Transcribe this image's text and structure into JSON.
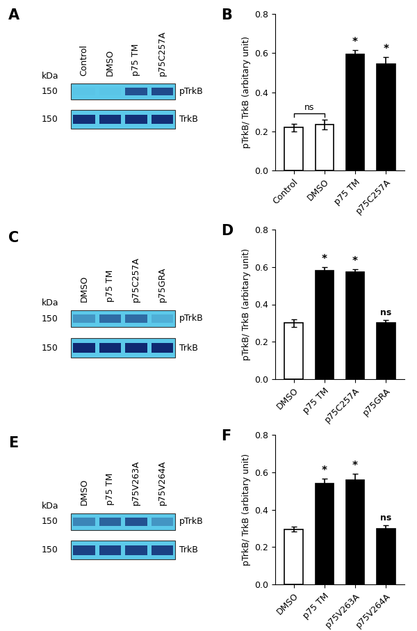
{
  "blots": [
    {
      "label": "A",
      "unit": "kDa",
      "lanes": [
        "Control",
        "DMSO",
        "p75 TM",
        "p75C257A"
      ],
      "rows": [
        {
          "name": "pTrkB",
          "kda": "150",
          "intensity": [
            0.02,
            0.02,
            0.7,
            0.75
          ]
        },
        {
          "name": "TrkB",
          "kda": "150",
          "intensity": [
            0.9,
            0.9,
            0.9,
            0.9
          ]
        }
      ]
    },
    {
      "label": "C",
      "unit": "kDa",
      "lanes": [
        "DMSO",
        "p75 TM",
        "p75C257A",
        "p75GRA"
      ],
      "rows": [
        {
          "name": "pTrkB",
          "kda": "150",
          "intensity": [
            0.3,
            0.55,
            0.55,
            0.15
          ]
        },
        {
          "name": "TrkB",
          "kda": "150",
          "intensity": [
            0.95,
            0.95,
            0.95,
            0.95
          ]
        }
      ]
    },
    {
      "label": "E",
      "unit": "kDa",
      "lanes": [
        "DMSO",
        "p75 TM",
        "p75V263A",
        "p75V264A"
      ],
      "rows": [
        {
          "name": "pTrkB",
          "kda": "150",
          "intensity": [
            0.4,
            0.6,
            0.7,
            0.3
          ]
        },
        {
          "name": "TrkB",
          "kda": "150",
          "intensity": [
            0.8,
            0.8,
            0.8,
            0.8
          ]
        }
      ]
    }
  ],
  "chart_data": [
    {
      "type": "bar",
      "label": "B",
      "y_label": "pTrkB/ TrkB (arbitary unit)",
      "categories": [
        "Control",
        "DMSO",
        "p75 TM",
        "p75C257A"
      ],
      "values": [
        0.22,
        0.235,
        0.595,
        0.545
      ],
      "errors": [
        0.02,
        0.025,
        0.02,
        0.035
      ],
      "colors": [
        "#ffffff",
        "#ffffff",
        "#000000",
        "#000000"
      ],
      "annotations": [
        {
          "text": "ns",
          "from": "Control",
          "to": "DMSO"
        },
        {
          "text": "*",
          "at": "p75 TM"
        },
        {
          "text": "*",
          "at": "p75C257A"
        }
      ],
      "ylim": [
        0,
        0.8
      ],
      "yticks": [
        {
          "value": 0,
          "label": "0.0"
        },
        0.2,
        0.4,
        0.6,
        0.8
      ]
    },
    {
      "type": "bar",
      "label": "D",
      "y_label": "pTrkB/ TrkB (arbitary unit)",
      "categories": [
        "DMSO",
        "p75 TM",
        "p75C257A",
        "p75GRA"
      ],
      "values": [
        0.3,
        0.58,
        0.572,
        0.3
      ],
      "errors": [
        0.02,
        0.02,
        0.015,
        0.015
      ],
      "colors": [
        "#ffffff",
        "#000000",
        "#000000",
        "#000000"
      ],
      "annotations": [
        {
          "text": "*",
          "at": "p75 TM"
        },
        {
          "text": "*",
          "at": "p75C257A"
        },
        {
          "text": "ns",
          "at": "p75GRA"
        }
      ],
      "ylim": [
        0,
        0.8
      ],
      "yticks": [
        {
          "value": 0,
          "label": "0.0"
        },
        0.2,
        0.4,
        0.6,
        0.8
      ]
    },
    {
      "type": "bar",
      "label": "F",
      "y_label": "pTrkB/ TrkB (arbitary unit)",
      "categories": [
        "DMSO",
        "p75 TM",
        "p75V263A",
        "p75V264A"
      ],
      "values": [
        0.295,
        0.54,
        0.56,
        0.298
      ],
      "errors": [
        0.012,
        0.025,
        0.03,
        0.018
      ],
      "colors": [
        "#ffffff",
        "#000000",
        "#000000",
        "#000000"
      ],
      "annotations": [
        {
          "text": "*",
          "at": "p75 TM"
        },
        {
          "text": "*",
          "at": "p75V263A"
        },
        {
          "text": "ns",
          "at": "p75V264A"
        }
      ],
      "ylim": [
        0,
        0.8
      ],
      "yticks": [
        {
          "value": 0,
          "label": "0.0"
        },
        0.2,
        0.4,
        0.6,
        0.8
      ]
    }
  ]
}
